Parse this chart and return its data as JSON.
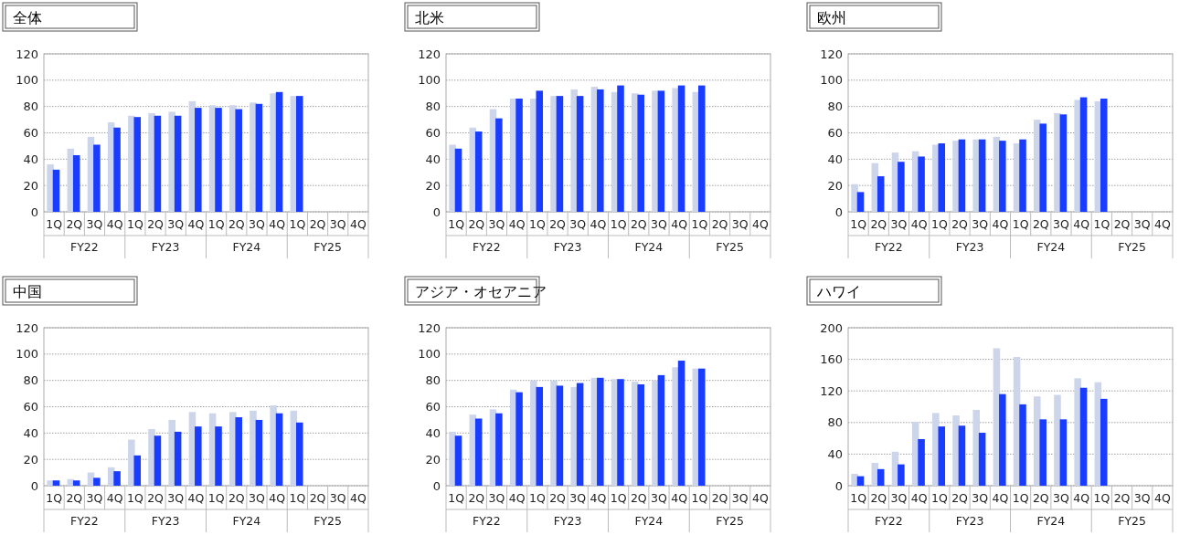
{
  "chart_data": [
    {
      "type": "bar",
      "title": "全体",
      "categories": [
        "1Q",
        "2Q",
        "3Q",
        "4Q",
        "1Q",
        "2Q",
        "3Q",
        "4Q",
        "1Q",
        "2Q",
        "3Q",
        "4Q",
        "1Q",
        "2Q",
        "3Q",
        "4Q"
      ],
      "annotations": [
        "FY22",
        "FY23",
        "FY24",
        "FY25"
      ],
      "ylim": [
        0,
        120
      ],
      "yticks": [
        0,
        20,
        40,
        60,
        80,
        100,
        120
      ],
      "grid": "y",
      "series": [
        {
          "color": "#cdd5ea",
          "values": [
            36,
            48,
            57,
            68,
            73,
            75,
            76,
            84,
            81,
            81,
            83,
            90,
            88,
            null,
            null,
            null
          ]
        },
        {
          "color": "#1a3cff",
          "values": [
            32,
            43,
            51,
            64,
            72,
            73,
            73,
            79,
            79,
            78,
            82,
            91,
            88,
            null,
            null,
            null
          ]
        }
      ]
    },
    {
      "type": "bar",
      "title": "北米",
      "categories": [
        "1Q",
        "2Q",
        "3Q",
        "4Q",
        "1Q",
        "2Q",
        "3Q",
        "4Q",
        "1Q",
        "2Q",
        "3Q",
        "4Q",
        "1Q",
        "2Q",
        "3Q",
        "4Q"
      ],
      "annotations": [
        "FY22",
        "FY23",
        "FY24",
        "FY25"
      ],
      "ylim": [
        0,
        120
      ],
      "yticks": [
        0,
        20,
        40,
        60,
        80,
        100,
        120
      ],
      "grid": "y",
      "series": [
        {
          "color": "#cdd5ea",
          "values": [
            51,
            64,
            78,
            86,
            86,
            88,
            93,
            95,
            91,
            90,
            92,
            94,
            91,
            null,
            null,
            null
          ]
        },
        {
          "color": "#1a3cff",
          "values": [
            48,
            61,
            71,
            86,
            92,
            88,
            88,
            93,
            96,
            89,
            92,
            96,
            96,
            null,
            null,
            null
          ]
        }
      ]
    },
    {
      "type": "bar",
      "title": "欧州",
      "categories": [
        "1Q",
        "2Q",
        "3Q",
        "4Q",
        "1Q",
        "2Q",
        "3Q",
        "4Q",
        "1Q",
        "2Q",
        "3Q",
        "4Q",
        "1Q",
        "2Q",
        "3Q",
        "4Q"
      ],
      "annotations": [
        "FY22",
        "FY23",
        "FY24",
        "FY25"
      ],
      "ylim": [
        0,
        120
      ],
      "yticks": [
        0,
        20,
        40,
        60,
        80,
        100,
        120
      ],
      "grid": "y",
      "series": [
        {
          "color": "#cdd5ea",
          "values": [
            21,
            37,
            45,
            46,
            51,
            54,
            55,
            57,
            52,
            70,
            75,
            85,
            84,
            null,
            null,
            null
          ]
        },
        {
          "color": "#1a3cff",
          "values": [
            15,
            27,
            38,
            42,
            52,
            55,
            55,
            54,
            55,
            67,
            74,
            87,
            86,
            null,
            null,
            null
          ]
        }
      ]
    },
    {
      "type": "bar",
      "title": "中国",
      "categories": [
        "1Q",
        "2Q",
        "3Q",
        "4Q",
        "1Q",
        "2Q",
        "3Q",
        "4Q",
        "1Q",
        "2Q",
        "3Q",
        "4Q",
        "1Q",
        "2Q",
        "3Q",
        "4Q"
      ],
      "annotations": [
        "FY22",
        "FY23",
        "FY24",
        "FY25"
      ],
      "ylim": [
        0,
        120
      ],
      "yticks": [
        0,
        20,
        40,
        60,
        80,
        100,
        120
      ],
      "grid": "y",
      "series": [
        {
          "color": "#cdd5ea",
          "values": [
            4,
            5,
            10,
            14,
            35,
            43,
            50,
            56,
            55,
            56,
            57,
            61,
            57,
            null,
            null,
            null
          ]
        },
        {
          "color": "#1a3cff",
          "values": [
            4,
            4,
            6,
            11,
            23,
            38,
            41,
            45,
            45,
            52,
            50,
            55,
            48,
            null,
            null,
            null
          ]
        }
      ]
    },
    {
      "type": "bar",
      "title": "アジア・オセアニア",
      "categories": [
        "1Q",
        "2Q",
        "3Q",
        "4Q",
        "1Q",
        "2Q",
        "3Q",
        "4Q",
        "1Q",
        "2Q",
        "3Q",
        "4Q",
        "1Q",
        "2Q",
        "3Q",
        "4Q"
      ],
      "annotations": [
        "FY22",
        "FY23",
        "FY24",
        "FY25"
      ],
      "ylim": [
        0,
        120
      ],
      "yticks": [
        0,
        20,
        40,
        60,
        80,
        100,
        120
      ],
      "grid": "y",
      "series": [
        {
          "color": "#cdd5ea",
          "values": [
            41,
            54,
            58,
            73,
            80,
            80,
            75,
            82,
            81,
            79,
            80,
            90,
            89,
            null,
            null,
            null
          ]
        },
        {
          "color": "#1a3cff",
          "values": [
            38,
            51,
            55,
            71,
            75,
            76,
            78,
            82,
            81,
            77,
            84,
            95,
            89,
            null,
            null,
            null
          ]
        }
      ]
    },
    {
      "type": "bar",
      "title": "ハワイ",
      "categories": [
        "1Q",
        "2Q",
        "3Q",
        "4Q",
        "1Q",
        "2Q",
        "3Q",
        "4Q",
        "1Q",
        "2Q",
        "3Q",
        "4Q",
        "1Q",
        "2Q",
        "3Q",
        "4Q"
      ],
      "annotations": [
        "FY22",
        "FY23",
        "FY24",
        "FY25"
      ],
      "ylim": [
        0,
        200
      ],
      "yticks": [
        0,
        40,
        80,
        120,
        160,
        200
      ],
      "grid": "y",
      "series": [
        {
          "color": "#cdd5ea",
          "values": [
            15,
            29,
            43,
            81,
            92,
            89,
            96,
            174,
            163,
            113,
            115,
            136,
            131,
            null,
            null,
            null
          ]
        },
        {
          "color": "#1a3cff",
          "values": [
            12,
            21,
            27,
            59,
            75,
            76,
            67,
            116,
            103,
            84,
            84,
            124,
            110,
            null,
            null,
            null
          ]
        }
      ]
    }
  ]
}
